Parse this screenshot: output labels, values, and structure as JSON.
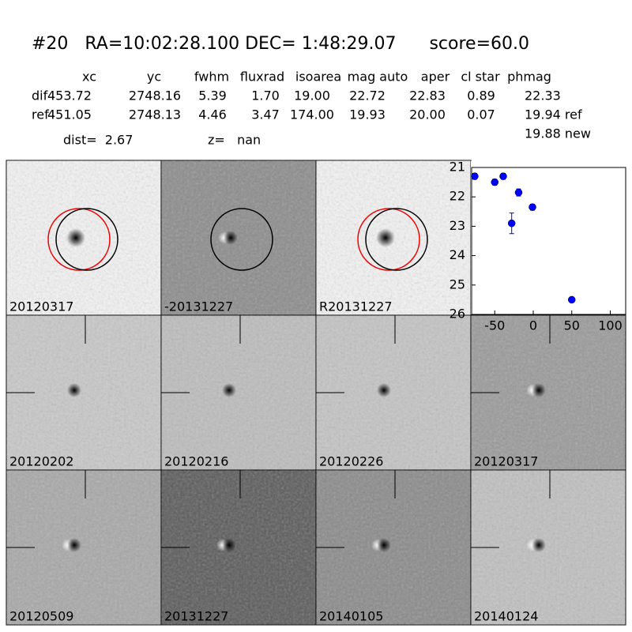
{
  "header": {
    "title": "#20   RA=10:02:28.100 DEC= 1:48:29.07      score=60.0",
    "columns": [
      "xc",
      "yc",
      "fwhm",
      "fluxrad",
      "isoarea",
      "mag auto",
      "aper",
      "cl star",
      "phmag"
    ],
    "rows": [
      {
        "label": "dif",
        "values": [
          "453.72",
          "2748.16",
          "5.39",
          "1.70",
          "19.00",
          "22.72",
          "22.83",
          "0.89",
          "22.33"
        ]
      },
      {
        "label": "ref",
        "values": [
          "451.05",
          "2748.13",
          "4.46",
          "3.47",
          "174.00",
          "19.93",
          "20.00",
          "0.07",
          "19.94 ref"
        ]
      }
    ],
    "extra": "19.88 new",
    "dist": "dist=  2.67",
    "z": "z=   nan"
  },
  "stamps": [
    {
      "label": "20120317"
    },
    {
      "label": "-20131227"
    },
    {
      "label": "R20131227"
    },
    {
      "label": "20120202"
    },
    {
      "label": "20120216"
    },
    {
      "label": "20120226"
    },
    {
      "label": "20120317",
      "color": "#ff0000"
    },
    {
      "label": "20120509"
    },
    {
      "label": "20131227"
    },
    {
      "label": "20140105"
    },
    {
      "label": "20140124"
    }
  ],
  "chart_data": {
    "type": "scatter",
    "x": [
      -76,
      -50,
      -39,
      -28,
      -19,
      -1,
      50
    ],
    "values": [
      21.3,
      21.5,
      21.3,
      22.9,
      21.85,
      22.35,
      25.5
    ],
    "errors": [
      0.1,
      0.1,
      0.1,
      0.35,
      0.12,
      0.1,
      0.08
    ],
    "color": "#0000ff",
    "xlim": [
      -80,
      120
    ],
    "ylim": [
      21,
      26
    ],
    "y_inverted": true,
    "xticks": [
      -50,
      0,
      50,
      100
    ],
    "yticks": [
      21,
      22,
      23,
      24,
      25,
      26
    ]
  }
}
